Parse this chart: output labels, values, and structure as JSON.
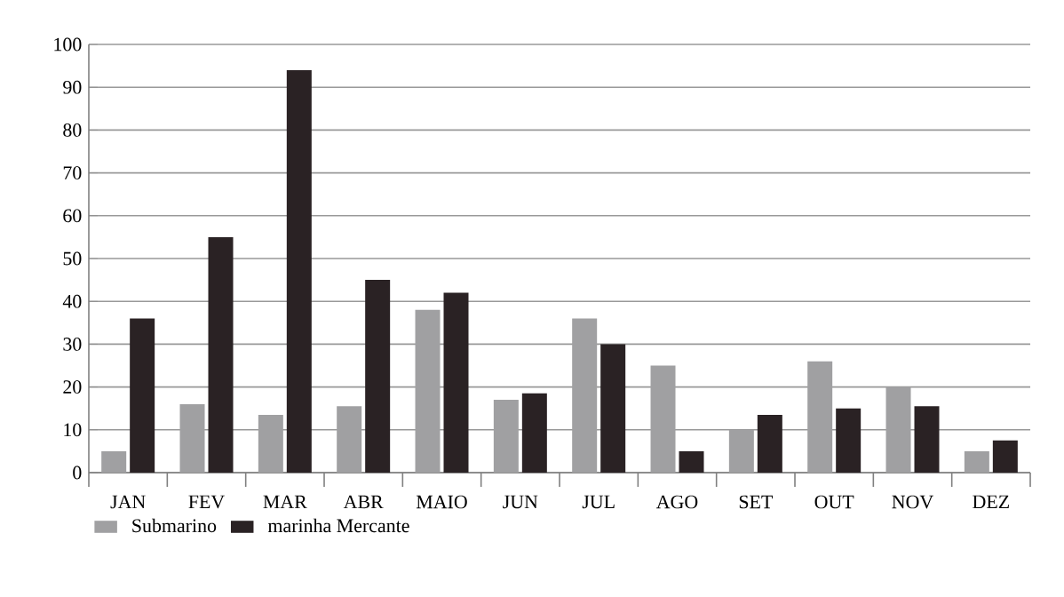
{
  "chart_data": {
    "type": "bar",
    "categories": [
      "JAN",
      "FEV",
      "MAR",
      "ABR",
      "MAIO",
      "JUN",
      "JUL",
      "AGO",
      "SET",
      "OUT",
      "NOV",
      "DEZ"
    ],
    "series": [
      {
        "name": "Submarino",
        "color": "#a0a0a2",
        "values": [
          5,
          16,
          13.5,
          15.5,
          38,
          17,
          36,
          25,
          10,
          26,
          20,
          5
        ]
      },
      {
        "name": "marinha Mercante",
        "color": "#2a2224",
        "values": [
          36,
          55,
          94,
          45,
          42,
          18.5,
          30,
          5,
          13.5,
          15,
          15.5,
          7.5
        ]
      }
    ],
    "ylim": [
      0,
      100
    ],
    "yticks": [
      0,
      10,
      20,
      30,
      40,
      50,
      60,
      70,
      80,
      90,
      100
    ],
    "grid": "y",
    "legend": "bottom"
  }
}
